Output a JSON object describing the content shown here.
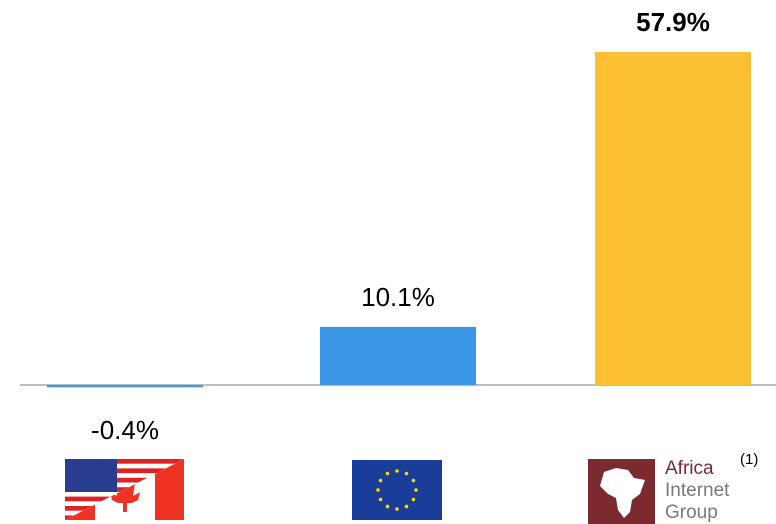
{
  "chart_data": {
    "type": "bar",
    "categories": [
      null,
      null,
      null
    ],
    "values": [
      -0.4,
      10.1,
      57.9
    ],
    "value_labels": [
      "-0.4%",
      "10.1%",
      "57.9%"
    ],
    "colors": [
      "#3d97e8",
      "#3d97e8",
      "#fbbf33"
    ],
    "highlight_index": 2,
    "logo": {
      "lines": [
        "Africa",
        "Internet",
        "Group"
      ],
      "note": "(1)"
    }
  }
}
